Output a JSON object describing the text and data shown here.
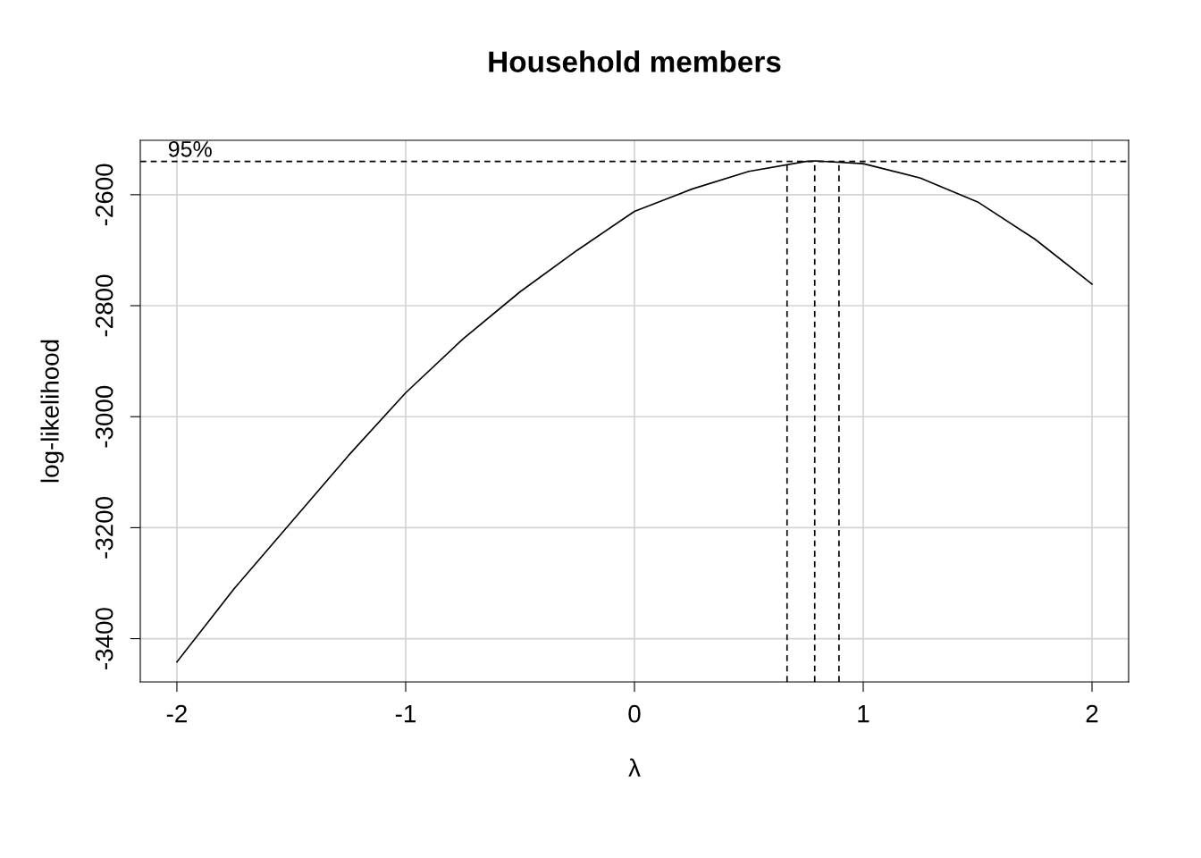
{
  "chart_data": {
    "type": "line",
    "title": "Household members",
    "xlabel": "λ",
    "ylabel": "log-likelihood",
    "x": [
      -2,
      -1.75,
      -1.5,
      -1.25,
      -1,
      -0.75,
      -0.5,
      -0.25,
      0,
      0.25,
      0.5,
      0.75,
      0.79,
      1,
      1.25,
      1.5,
      1.75,
      2
    ],
    "series": [
      {
        "color": "#000000",
        "values": [
          -3442,
          -3310,
          -3190,
          -3070,
          -2957,
          -2860,
          -2775,
          -2700,
          -2630,
          -2590,
          -2558,
          -2540,
          -2539,
          -2544,
          -2570,
          -2613,
          -2680,
          -2761
        ]
      }
    ],
    "xlim": [
      -2.16,
      2.16
    ],
    "ylim": [
      -3478,
      -2502
    ],
    "xticks": [
      -2,
      -1,
      0,
      1,
      2
    ],
    "yticks": [
      -3400,
      -3200,
      -3000,
      -2800,
      -2600
    ],
    "grid": true,
    "line_style": "solid",
    "marker": "none",
    "annotations": [
      "95%"
    ],
    "ref_lines": [
      {
        "axis": "y",
        "value": -2540,
        "color": "#000000",
        "line_style": "dashed"
      },
      {
        "axis": "x",
        "value": 0.667,
        "color": "#000000",
        "line_style": "dashed"
      },
      {
        "axis": "x",
        "value": 0.788,
        "color": "#000000",
        "line_style": "dashed"
      },
      {
        "axis": "x",
        "value": 0.894,
        "color": "#000000",
        "line_style": "dashed"
      }
    ]
  }
}
